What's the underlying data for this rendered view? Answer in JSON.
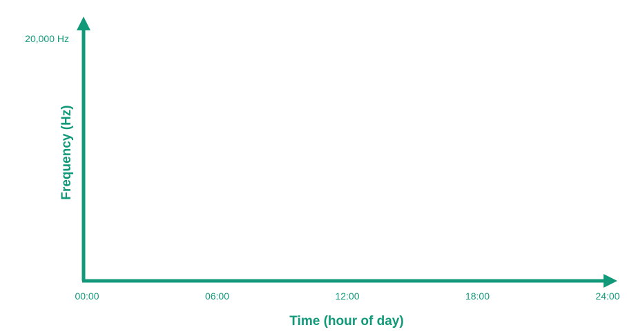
{
  "colors": {
    "axis": "#119979",
    "text": "#119979",
    "background": "#ffffff"
  },
  "chart_data": {
    "type": "line",
    "title": "",
    "xlabel": "Time (hour of day)",
    "ylabel": "Frequency (Hz)",
    "x_tick_labels": [
      "00:00",
      "06:00",
      "12:00",
      "18:00",
      "24:00"
    ],
    "x_ticks": [
      0,
      6,
      12,
      18,
      24
    ],
    "xlim": [
      0,
      24
    ],
    "y_tick_labels": [
      "20,000 Hz"
    ],
    "y_ticks": [
      20000
    ],
    "ylim": [
      0,
      20000
    ],
    "grid": false,
    "series": []
  }
}
